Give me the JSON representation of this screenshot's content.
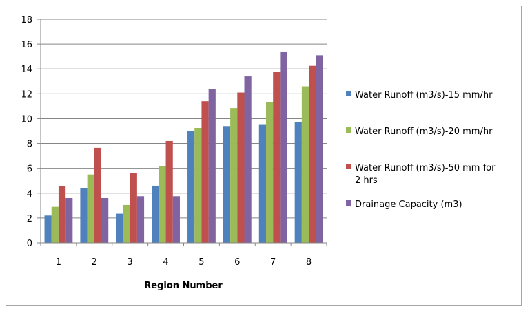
{
  "chart_data": {
    "type": "bar",
    "title": "",
    "xlabel": "Region Number",
    "ylabel": "",
    "ylim": [
      0,
      18
    ],
    "yticks": [
      0,
      2,
      4,
      6,
      8,
      10,
      12,
      14,
      16,
      18
    ],
    "categories": [
      "1",
      "2",
      "3",
      "4",
      "5",
      "6",
      "7",
      "8"
    ],
    "grid": true,
    "legend_position": "right",
    "series": [
      {
        "name": "Water Runoff  (m3/s)-15 mm/hr",
        "color": "#4f81bd",
        "values": [
          2.2,
          4.4,
          2.35,
          4.6,
          9.0,
          9.4,
          9.55,
          9.75
        ]
      },
      {
        "name": "Water Runoff  (m3/s)-20 mm/hr",
        "color": "#9bbb59",
        "values": [
          2.9,
          5.5,
          3.05,
          6.15,
          9.25,
          10.85,
          11.3,
          12.6
        ]
      },
      {
        "name": "Water Runoff  (m3/s)-50 mm for 2 hrs",
        "color": "#c0504d",
        "values": [
          4.55,
          7.65,
          5.6,
          8.2,
          11.4,
          12.1,
          13.75,
          14.25
        ]
      },
      {
        "name": "Drainage Capacity (m3)",
        "color": "#8064a2",
        "values": [
          3.6,
          3.6,
          3.75,
          3.75,
          12.4,
          13.4,
          15.4,
          15.1
        ]
      }
    ],
    "legend_lines": [
      [
        "Water Runoff  (m3/s)-15 mm/hr"
      ],
      [
        "Water Runoff  (m3/s)-20 mm/hr"
      ],
      [
        "Water Runoff  (m3/s)-50 mm for",
        "2 hrs"
      ],
      [
        "Drainage Capacity (m3)"
      ]
    ]
  }
}
